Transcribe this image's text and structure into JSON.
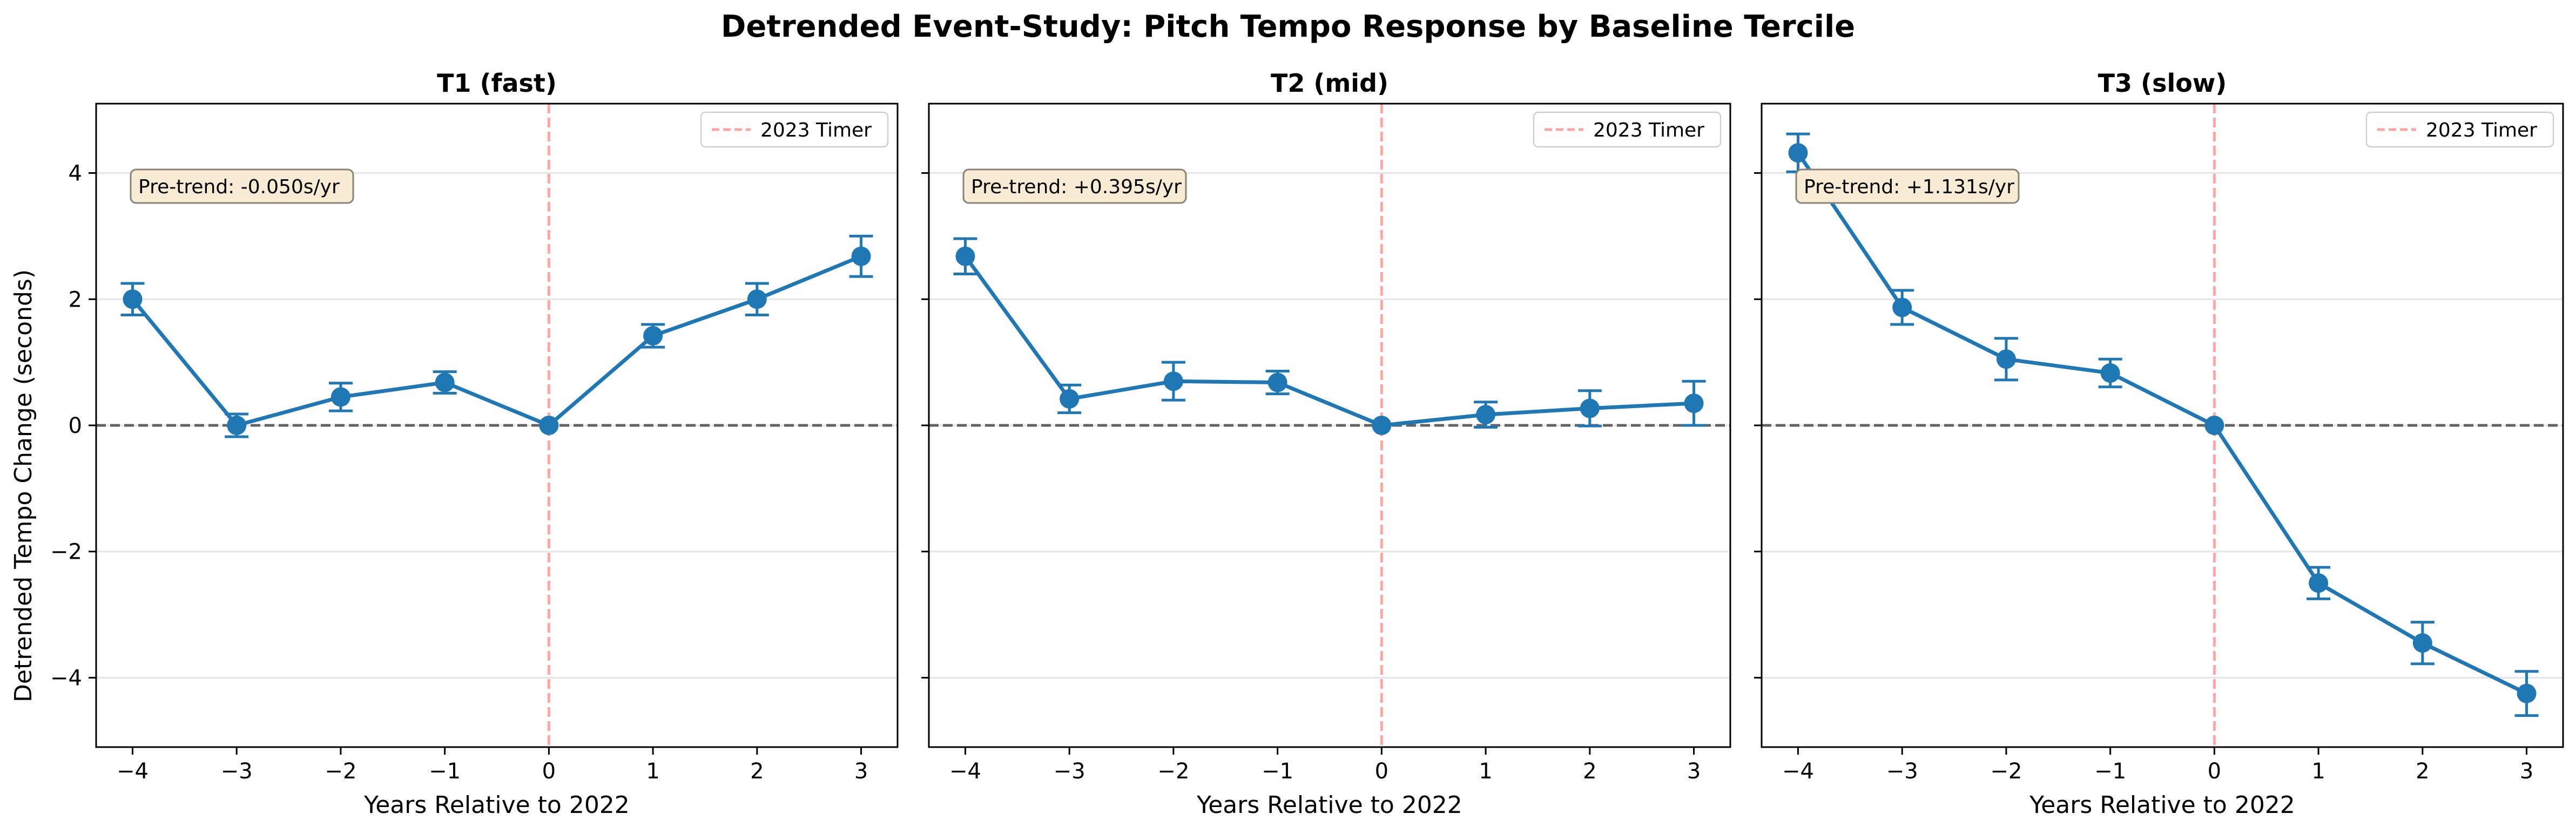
{
  "figure": {
    "title": "Detrended Event-Study: Pitch Tempo Response by Baseline Tercile",
    "ylabel": "Detrended Tempo Change (seconds)"
  },
  "style": {
    "series_color": "#1f77b4",
    "event_line_color": "#ff9896",
    "zero_line_color": "#555555",
    "grid_color": "#e6e6e6",
    "annotation_fill": "#f8ecd4",
    "annotation_edge": "#8a8276"
  },
  "chart_data": [
    {
      "type": "line",
      "title": "T1 (fast)",
      "xlabel": "Years Relative to 2022",
      "x": [
        -4,
        -3,
        -2,
        -1,
        0,
        1,
        2,
        3
      ],
      "y": [
        2.0,
        0.0,
        0.45,
        0.68,
        0.0,
        1.42,
        2.0,
        2.68
      ],
      "err": [
        0.25,
        0.18,
        0.22,
        0.17,
        0.0,
        0.18,
        0.25,
        0.32
      ],
      "annotation": "Pre-trend: -0.050s/yr",
      "legend": "2023 Timer",
      "legend_position": "upper right",
      "event_x": 0,
      "xlim": [
        -4.35,
        3.35
      ],
      "ylim": [
        -5.1,
        5.1
      ],
      "xticks": [
        -4,
        -3,
        -2,
        -1,
        0,
        1,
        2,
        3
      ],
      "xtick_labels": [
        "−4",
        "−3",
        "−2",
        "−1",
        "0",
        "1",
        "2",
        "3"
      ],
      "yticks": [
        -4,
        -2,
        0,
        2,
        4
      ],
      "ytick_labels": [
        "−4",
        "−2",
        "0",
        "2",
        "4"
      ],
      "show_ytick_labels": true,
      "grid": "y"
    },
    {
      "type": "line",
      "title": "T2 (mid)",
      "xlabel": "Years Relative to 2022",
      "x": [
        -4,
        -3,
        -2,
        -1,
        0,
        1,
        2,
        3
      ],
      "y": [
        2.68,
        0.42,
        0.7,
        0.68,
        0.0,
        0.17,
        0.27,
        0.35
      ],
      "err": [
        0.28,
        0.22,
        0.3,
        0.18,
        0.0,
        0.2,
        0.28,
        0.35
      ],
      "annotation": "Pre-trend: +0.395s/yr",
      "legend": "2023 Timer",
      "legend_position": "upper right",
      "event_x": 0,
      "xlim": [
        -4.35,
        3.35
      ],
      "ylim": [
        -5.1,
        5.1
      ],
      "xticks": [
        -4,
        -3,
        -2,
        -1,
        0,
        1,
        2,
        3
      ],
      "xtick_labels": [
        "−4",
        "−3",
        "−2",
        "−1",
        "0",
        "1",
        "2",
        "3"
      ],
      "yticks": [
        -4,
        -2,
        0,
        2,
        4
      ],
      "ytick_labels": [],
      "show_ytick_labels": false,
      "grid": "y"
    },
    {
      "type": "line",
      "title": "T3 (slow)",
      "xlabel": "Years Relative to 2022",
      "x": [
        -4,
        -3,
        -2,
        -1,
        0,
        1,
        2,
        3
      ],
      "y": [
        4.32,
        1.87,
        1.05,
        0.83,
        0.0,
        -2.5,
        -3.45,
        -4.25
      ],
      "err": [
        0.3,
        0.27,
        0.33,
        0.22,
        0.0,
        0.25,
        0.33,
        0.35
      ],
      "annotation": "Pre-trend: +1.131s/yr",
      "legend": "2023 Timer",
      "legend_position": "upper right",
      "event_x": 0,
      "xlim": [
        -4.35,
        3.35
      ],
      "ylim": [
        -5.1,
        5.1
      ],
      "xticks": [
        -4,
        -3,
        -2,
        -1,
        0,
        1,
        2,
        3
      ],
      "xtick_labels": [
        "−4",
        "−3",
        "−2",
        "−1",
        "0",
        "1",
        "2",
        "3"
      ],
      "yticks": [
        -4,
        -2,
        0,
        2,
        4
      ],
      "ytick_labels": [],
      "show_ytick_labels": false,
      "grid": "y"
    }
  ]
}
